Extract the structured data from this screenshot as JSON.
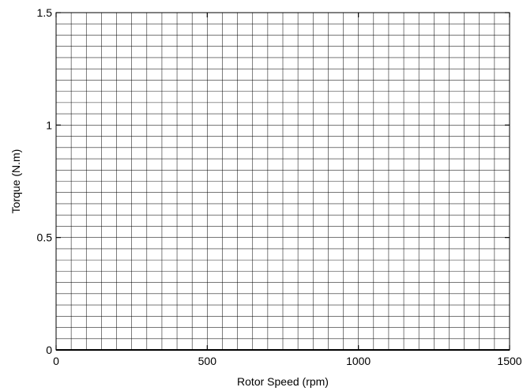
{
  "chart_data": {
    "type": "line",
    "title": "",
    "xlabel": "Rotor Speed (rpm)",
    "ylabel": "Torque (N.m)",
    "xlim": [
      0,
      1500
    ],
    "ylim": [
      0,
      1.5
    ],
    "x_ticks": [
      0,
      500,
      1000,
      1500
    ],
    "y_ticks": [
      0,
      0.5,
      1,
      1.5
    ],
    "x_tick_labels": [
      "0",
      "500",
      "1000",
      "1500"
    ],
    "y_tick_labels": [
      "0",
      "0.5",
      "1",
      "1.5"
    ],
    "grid": true,
    "minor_grid": true,
    "x_minor_step": 50,
    "y_minor_step": 0.05,
    "series": [
      {
        "values": []
      }
    ],
    "colors": {
      "grid": "#000000",
      "axes": "#000000",
      "background": "#ffffff"
    }
  }
}
